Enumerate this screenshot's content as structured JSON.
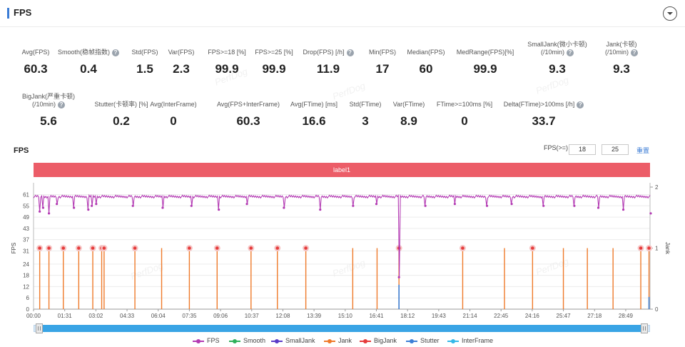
{
  "header": {
    "title": "FPS"
  },
  "metrics_row1": [
    {
      "label": "Avg(FPS)",
      "value": "60.3",
      "help": false
    },
    {
      "label": "Smooth(稳帧指数)",
      "value": "0.4",
      "help": true
    },
    {
      "label": "Std(FPS)",
      "value": "1.5",
      "help": false
    },
    {
      "label": "Var(FPS)",
      "value": "2.3",
      "help": false
    },
    {
      "label": "FPS>=18 [%]",
      "value": "99.9",
      "help": false
    },
    {
      "label": "FPS>=25 [%]",
      "value": "99.9",
      "help": false
    },
    {
      "label": "Drop(FPS) [/h]",
      "value": "11.9",
      "help": true
    },
    {
      "label": "Min(FPS)",
      "value": "17",
      "help": false
    },
    {
      "label": "Median(FPS)",
      "value": "60",
      "help": false
    },
    {
      "label": "MedRange(FPS)[%]",
      "value": "99.9",
      "help": false
    },
    {
      "label": "SmallJank(微小卡顿)",
      "label2": "(/10min)",
      "value": "9.3",
      "help": true
    },
    {
      "label": "Jank(卡顿)",
      "label2": "(/10min)",
      "value": "9.3",
      "help": true
    }
  ],
  "metrics_row2": [
    {
      "label": "BigJank(严重卡顿)",
      "label2": "(/10min)",
      "value": "5.6",
      "help": true
    },
    {
      "label": "Stutter(卡顿率) [%]",
      "value": "0.2",
      "help": false
    },
    {
      "label": "Avg(InterFrame)",
      "value": "0",
      "help": false
    },
    {
      "label": "Avg(FPS+InterFrame)",
      "value": "60.3",
      "help": false
    },
    {
      "label": "Avg(FTime) [ms]",
      "value": "16.6",
      "help": false
    },
    {
      "label": "Std(FTime)",
      "value": "3",
      "help": false
    },
    {
      "label": "Var(FTime)",
      "value": "8.9",
      "help": false
    },
    {
      "label": "FTime>=100ms [%]",
      "value": "0",
      "help": false
    },
    {
      "label": "Delta(FTime)>100ms [/h]",
      "value": "33.7",
      "help": true
    }
  ],
  "watermark": "PerfDog",
  "chart_section": {
    "title": "FPS",
    "threshold_label": "FPS(>=)",
    "threshold_1": "18",
    "threshold_2": "25",
    "reset_label": "重置",
    "label_bar": "label1"
  },
  "chart_data": {
    "type": "line",
    "y_left": {
      "label": "FPS",
      "ticks": [
        0,
        6,
        12,
        18,
        24,
        31,
        37,
        43,
        49,
        55,
        61
      ]
    },
    "y_right": {
      "label": "Jank",
      "ticks": [
        0,
        1,
        2
      ]
    },
    "x_ticks": [
      "00:00",
      "01:31",
      "03:02",
      "04:33",
      "06:04",
      "07:35",
      "09:06",
      "10:37",
      "12:08",
      "13:39",
      "15:10",
      "16:41",
      "18:12",
      "19:43",
      "21:14",
      "22:45",
      "24:16",
      "25:47",
      "27:18",
      "28:49"
    ],
    "x_range_seconds": [
      0,
      1800
    ],
    "fps_baseline": 60,
    "fps_drops": [
      {
        "t": 18,
        "v": 52
      },
      {
        "t": 28,
        "v": 54
      },
      {
        "t": 45,
        "v": 51
      },
      {
        "t": 68,
        "v": 56
      },
      {
        "t": 118,
        "v": 54
      },
      {
        "t": 160,
        "v": 53
      },
      {
        "t": 170,
        "v": 55
      },
      {
        "t": 183,
        "v": 56
      },
      {
        "t": 290,
        "v": 55
      },
      {
        "t": 377,
        "v": 54
      },
      {
        "t": 461,
        "v": 55
      },
      {
        "t": 541,
        "v": 53
      },
      {
        "t": 623,
        "v": 56
      },
      {
        "t": 731,
        "v": 54
      },
      {
        "t": 837,
        "v": 53
      },
      {
        "t": 933,
        "v": 55
      },
      {
        "t": 1001,
        "v": 56
      },
      {
        "t": 1067,
        "v": 17
      },
      {
        "t": 1144,
        "v": 55
      },
      {
        "t": 1230,
        "v": 56
      },
      {
        "t": 1324,
        "v": 55
      },
      {
        "t": 1396,
        "v": 56
      },
      {
        "t": 1489,
        "v": 55
      },
      {
        "t": 1579,
        "v": 55
      },
      {
        "t": 1649,
        "v": 54
      },
      {
        "t": 1722,
        "v": 53
      },
      {
        "t": 1802,
        "v": 51
      }
    ],
    "jank_events": [
      {
        "t": 18,
        "big": true
      },
      {
        "t": 45,
        "big": true
      },
      {
        "t": 87,
        "big": true
      },
      {
        "t": 132,
        "big": true
      },
      {
        "t": 173,
        "big": true
      },
      {
        "t": 199,
        "big": true
      },
      {
        "t": 206,
        "big": true
      },
      {
        "t": 296,
        "big": true
      },
      {
        "t": 374,
        "big": false
      },
      {
        "t": 455,
        "big": true
      },
      {
        "t": 536,
        "big": true
      },
      {
        "t": 635,
        "big": true
      },
      {
        "t": 712,
        "big": true
      },
      {
        "t": 795,
        "big": true
      },
      {
        "t": 932,
        "big": false
      },
      {
        "t": 1003,
        "big": false
      },
      {
        "t": 1067,
        "big": true
      },
      {
        "t": 1253,
        "big": true
      },
      {
        "t": 1375,
        "big": false
      },
      {
        "t": 1457,
        "big": true
      },
      {
        "t": 1547,
        "big": false
      },
      {
        "t": 1617,
        "big": false
      },
      {
        "t": 1692,
        "big": false
      },
      {
        "t": 1773,
        "big": true
      },
      {
        "t": 1797,
        "big": true
      }
    ],
    "stutter_events": [
      {
        "t": 1067,
        "v": 0.4
      },
      {
        "t": 1797,
        "v": 0.2
      }
    ],
    "legend": [
      "FPS",
      "Smooth",
      "SmallJank",
      "Jank",
      "BigJank",
      "Stutter",
      "InterFrame"
    ],
    "colors": {
      "FPS": "#b33ab3",
      "Smooth": "#2fb05a",
      "SmallJank": "#5a3bc8",
      "Jank": "#ef7a2a",
      "BigJank": "#e53b3b",
      "Stutter": "#3c7fd6",
      "InterFrame": "#35b8e8"
    }
  }
}
